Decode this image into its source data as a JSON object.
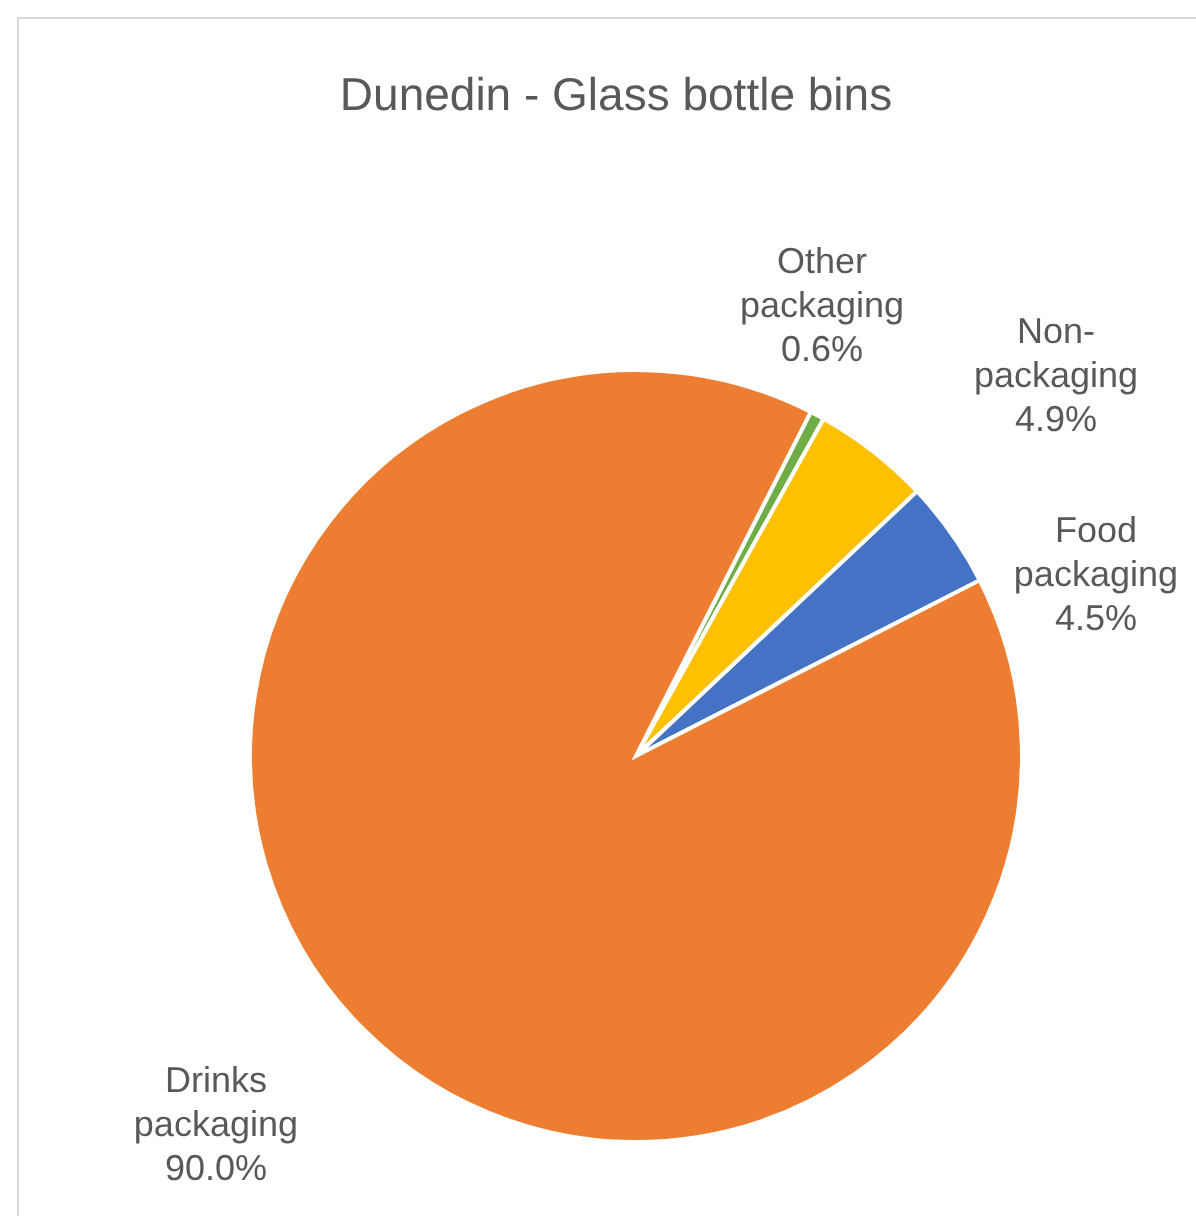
{
  "chart_data": {
    "type": "pie",
    "title": "Dunedin - Glass bottle bins",
    "categories": [
      "Other packaging",
      "Non-packaging",
      "Food packaging",
      "Drinks packaging"
    ],
    "values": [
      0.6,
      4.9,
      4.5,
      90.0
    ],
    "value_labels": [
      "0.6%",
      "4.9%",
      "4.5%",
      "90.0%"
    ],
    "colors": [
      "#70ad47",
      "#ffc000",
      "#4472c4",
      "#ed7d31"
    ]
  }
}
